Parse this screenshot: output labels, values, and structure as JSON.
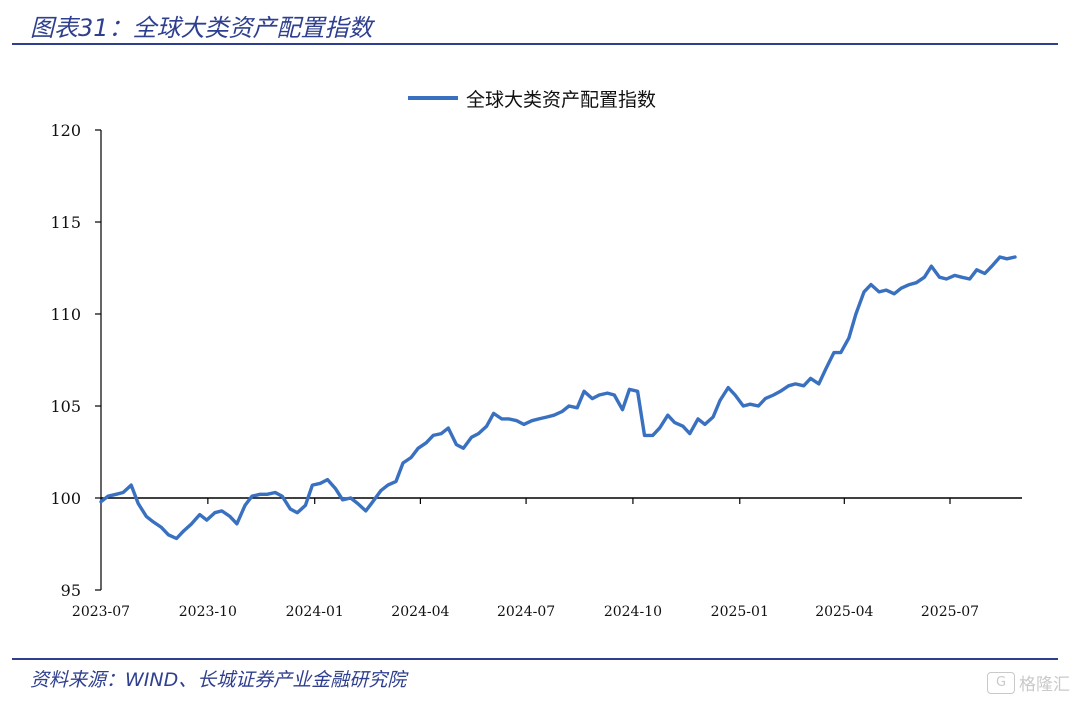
{
  "figure": {
    "title": "图表31：全球大类资产配置指数",
    "source": "资料来源：WIND、长城证券产业金融研究院",
    "watermark": "格隆汇"
  },
  "colors": {
    "line": "#3a70c0",
    "rule": "#2f3f8f",
    "axis": "#000000"
  },
  "chart_data": {
    "type": "line",
    "title": "",
    "xlabel": "",
    "ylabel": "",
    "ylim": [
      95,
      120
    ],
    "yticks": [
      95,
      100,
      105,
      110,
      115,
      120
    ],
    "ytick_labels": [
      "95",
      "100",
      "105",
      "110",
      "115",
      "120"
    ],
    "xticks": [
      "2023-07",
      "2023-10",
      "2024-01",
      "2024-04",
      "2024-07",
      "2024-10",
      "2025-01",
      "2025-04",
      "2025-07"
    ],
    "grid": false,
    "legend": "top-center",
    "series": [
      {
        "name": "全球大类资产配置指数",
        "x": [
          "2023-07-01",
          "2023-07-07",
          "2023-07-14",
          "2023-07-20",
          "2023-07-27",
          "2023-08-02",
          "2023-08-09",
          "2023-08-15",
          "2023-08-22",
          "2023-08-28",
          "2023-09-04",
          "2023-09-10",
          "2023-09-17",
          "2023-09-24",
          "2023-09-30",
          "2023-10-07",
          "2023-10-13",
          "2023-10-20",
          "2023-10-26",
          "2023-11-02",
          "2023-11-08",
          "2023-11-15",
          "2023-11-21",
          "2023-11-28",
          "2023-12-04",
          "2023-12-11",
          "2023-12-17",
          "2023-12-24",
          "2023-12-30",
          "2024-01-06",
          "2024-01-12",
          "2024-01-19",
          "2024-01-25",
          "2024-02-01",
          "2024-02-07",
          "2024-02-14",
          "2024-02-20",
          "2024-02-27",
          "2024-03-04",
          "2024-03-11",
          "2024-03-17",
          "2024-03-24",
          "2024-03-30",
          "2024-04-06",
          "2024-04-12",
          "2024-04-19",
          "2024-04-25",
          "2024-05-02",
          "2024-05-08",
          "2024-05-15",
          "2024-05-21",
          "2024-05-28",
          "2024-06-03",
          "2024-06-10",
          "2024-06-16",
          "2024-06-23",
          "2024-06-29",
          "2024-07-06",
          "2024-07-12",
          "2024-07-19",
          "2024-07-25",
          "2024-08-01",
          "2024-08-07",
          "2024-08-14",
          "2024-08-20",
          "2024-08-27",
          "2024-09-02",
          "2024-09-09",
          "2024-09-15",
          "2024-09-22",
          "2024-09-28",
          "2024-10-05",
          "2024-10-11",
          "2024-10-18",
          "2024-10-24",
          "2024-10-31",
          "2024-11-06",
          "2024-11-13",
          "2024-11-19",
          "2024-11-26",
          "2024-12-02",
          "2024-12-09",
          "2024-12-15",
          "2024-12-22",
          "2024-12-28",
          "2025-01-04",
          "2025-01-10",
          "2025-01-17",
          "2025-01-23",
          "2025-01-30",
          "2025-02-05",
          "2025-02-12",
          "2025-02-18",
          "2025-02-25",
          "2025-03-03",
          "2025-03-10",
          "2025-03-16",
          "2025-03-23",
          "2025-03-29",
          "2025-04-05",
          "2025-04-11",
          "2025-04-18",
          "2025-04-24",
          "2025-05-01",
          "2025-05-07",
          "2025-05-14",
          "2025-05-20",
          "2025-05-27",
          "2025-06-02",
          "2025-06-09",
          "2025-06-15",
          "2025-06-22",
          "2025-06-28",
          "2025-07-05",
          "2025-07-11",
          "2025-07-18",
          "2025-07-24",
          "2025-07-31",
          "2025-08-06",
          "2025-08-13",
          "2025-08-19",
          "2025-08-26"
        ],
        "values": [
          99.8,
          100.1,
          100.2,
          100.3,
          100.7,
          99.7,
          99.0,
          98.7,
          98.4,
          98.0,
          97.8,
          98.2,
          98.6,
          99.1,
          98.8,
          99.2,
          99.3,
          99.0,
          98.6,
          99.6,
          100.1,
          100.2,
          100.2,
          100.3,
          100.1,
          99.4,
          99.2,
          99.6,
          100.7,
          100.8,
          101.0,
          100.5,
          99.9,
          100.0,
          99.7,
          99.3,
          99.8,
          100.4,
          100.7,
          100.9,
          101.9,
          102.2,
          102.7,
          103.0,
          103.4,
          103.5,
          103.8,
          102.9,
          102.7,
          103.3,
          103.5,
          103.9,
          104.6,
          104.3,
          104.3,
          104.2,
          104.0,
          104.2,
          104.3,
          104.4,
          104.5,
          104.7,
          105.0,
          104.9,
          105.8,
          105.4,
          105.6,
          105.7,
          105.6,
          104.8,
          105.9,
          105.8,
          103.4,
          103.4,
          103.8,
          104.5,
          104.1,
          103.9,
          103.5,
          104.3,
          104.0,
          104.4,
          105.3,
          106.0,
          105.6,
          105.0,
          105.1,
          105.0,
          105.4,
          105.6,
          105.8,
          106.1,
          106.2,
          106.1,
          106.5,
          106.2,
          107.0,
          107.9,
          107.9,
          108.7,
          110.0,
          111.2,
          111.6,
          111.2,
          111.3,
          111.1,
          111.4,
          111.6,
          111.7,
          112.0,
          112.6,
          112.0,
          111.9,
          112.1,
          112.0,
          111.9,
          112.4,
          112.2,
          112.6,
          113.1,
          113.0,
          113.1
        ]
      }
    ]
  }
}
